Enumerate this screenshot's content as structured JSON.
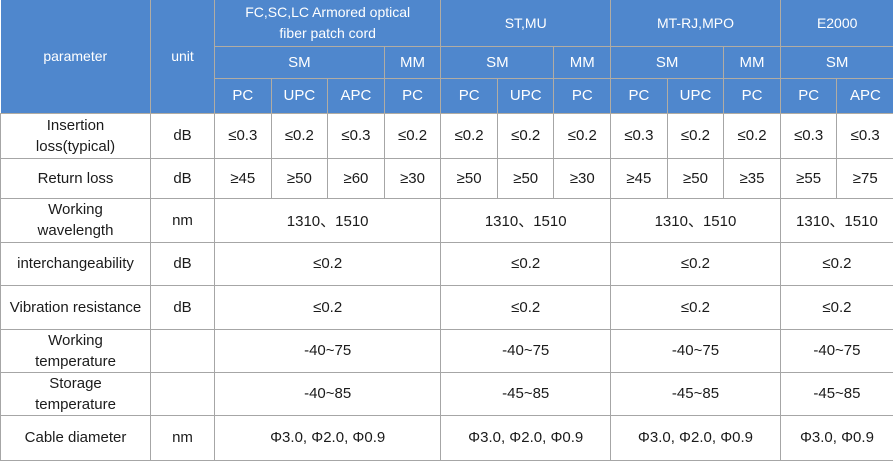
{
  "colors": {
    "header_bg": "#4f87cd",
    "header_border": "#b1aca3",
    "body_border": "#a6a6a6",
    "header_text": "#ffffff",
    "body_text": "#1b1b1b"
  },
  "table": {
    "header": {
      "parameter_label": "parameter",
      "unit_label": "unit",
      "groups": [
        {
          "name": "FC,SC,LC Armored optical\nfiber patch cord",
          "sm_label": "SM",
          "mm_label": "MM",
          "sm_cols": [
            "PC",
            "UPC",
            "APC"
          ],
          "mm_cols": [
            "PC"
          ]
        },
        {
          "name": "ST,MU",
          "sm_label": "SM",
          "mm_label": "MM",
          "sm_cols": [
            "PC",
            "UPC"
          ],
          "mm_cols": [
            "PC"
          ]
        },
        {
          "name": "MT-RJ,MPO",
          "sm_label": "SM",
          "mm_label": "MM",
          "sm_cols": [
            "PC",
            "UPC"
          ],
          "mm_cols": [
            "PC"
          ]
        },
        {
          "name": "E2000",
          "sm_label": "SM",
          "sm_cols": [
            "PC",
            "APC"
          ],
          "mm_cols": []
        }
      ]
    },
    "rows": [
      {
        "param": "Insertion\nloss(typical)",
        "unit": "dB",
        "cells": [
          "≤0.3",
          "≤0.2",
          "≤0.3",
          "≤0.2",
          "≤0.2",
          "≤0.2",
          "≤0.2",
          "≤0.3",
          "≤0.2",
          "≤0.2",
          "≤0.3",
          "≤0.3"
        ]
      },
      {
        "param": "Return loss",
        "unit": "dB",
        "cells": [
          "≥45",
          "≥50",
          "≥60",
          "≥30",
          "≥50",
          "≥50",
          "≥30",
          "≥45",
          "≥50",
          "≥35",
          "≥55",
          "≥75"
        ]
      },
      {
        "param": "Working\nwavelength",
        "unit": "nm",
        "cells": [
          "1310、1510",
          "1310、1510",
          "1310、1510",
          "1310、1510"
        ]
      },
      {
        "param": "interchangeability",
        "unit": "dB",
        "cells": [
          "≤0.2",
          "≤0.2",
          "≤0.2",
          "≤0.2"
        ]
      },
      {
        "param": "Vibration resistance",
        "unit": "dB",
        "cells": [
          "≤0.2",
          "≤0.2",
          "≤0.2",
          "≤0.2"
        ]
      },
      {
        "param": "Working\ntemperature",
        "unit": "",
        "cells": [
          "-40~75",
          "-40~75",
          "-40~75",
          "-40~75"
        ]
      },
      {
        "param": "Storage\ntemperature",
        "unit": "",
        "cells": [
          "-40~85",
          "-45~85",
          "-45~85",
          "-45~85"
        ]
      },
      {
        "param": "Cable diameter",
        "unit": "nm",
        "cells": [
          "Φ3.0, Φ2.0, Φ0.9",
          "Φ3.0, Φ2.0, Φ0.9",
          "Φ3.0, Φ2.0, Φ0.9",
          "Φ3.0, Φ0.9"
        ]
      }
    ]
  }
}
